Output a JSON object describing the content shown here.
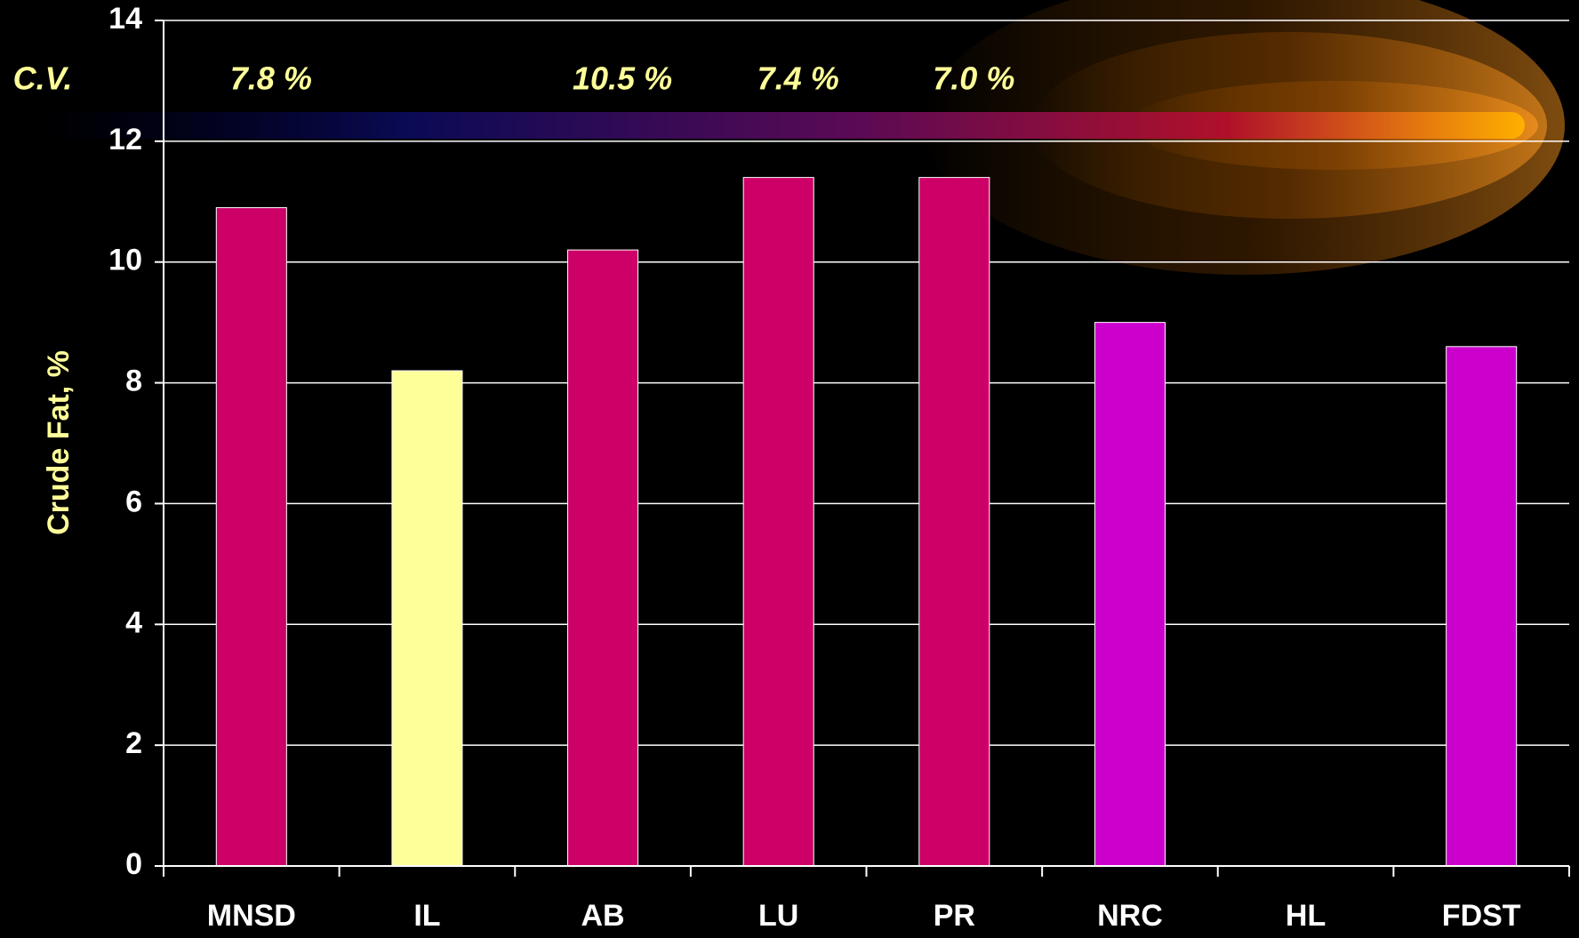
{
  "chart_data": {
    "type": "bar",
    "y_axis_label": "Crude Fat, %",
    "categories": [
      "MNSD",
      "IL",
      "AB",
      "LU",
      "PR",
      "NRC",
      "HL",
      "FDST"
    ],
    "values": [
      10.9,
      8.2,
      10.2,
      11.4,
      11.4,
      9.0,
      null,
      8.6
    ],
    "colors": [
      "#cc0066",
      "#ffff99",
      "#cc0066",
      "#cc0066",
      "#cc0066",
      "#cc00cc",
      "#cc00cc",
      "#cc00cc"
    ],
    "ylim": [
      0,
      14
    ],
    "yticks": [
      0,
      2,
      4,
      6,
      8,
      10,
      12,
      14
    ],
    "grid": true,
    "cv_label": "C.V.",
    "cv_values": [
      "7.8 %",
      null,
      "10.5 %",
      "7.4 %",
      "7.0 %",
      null,
      null,
      null
    ]
  }
}
